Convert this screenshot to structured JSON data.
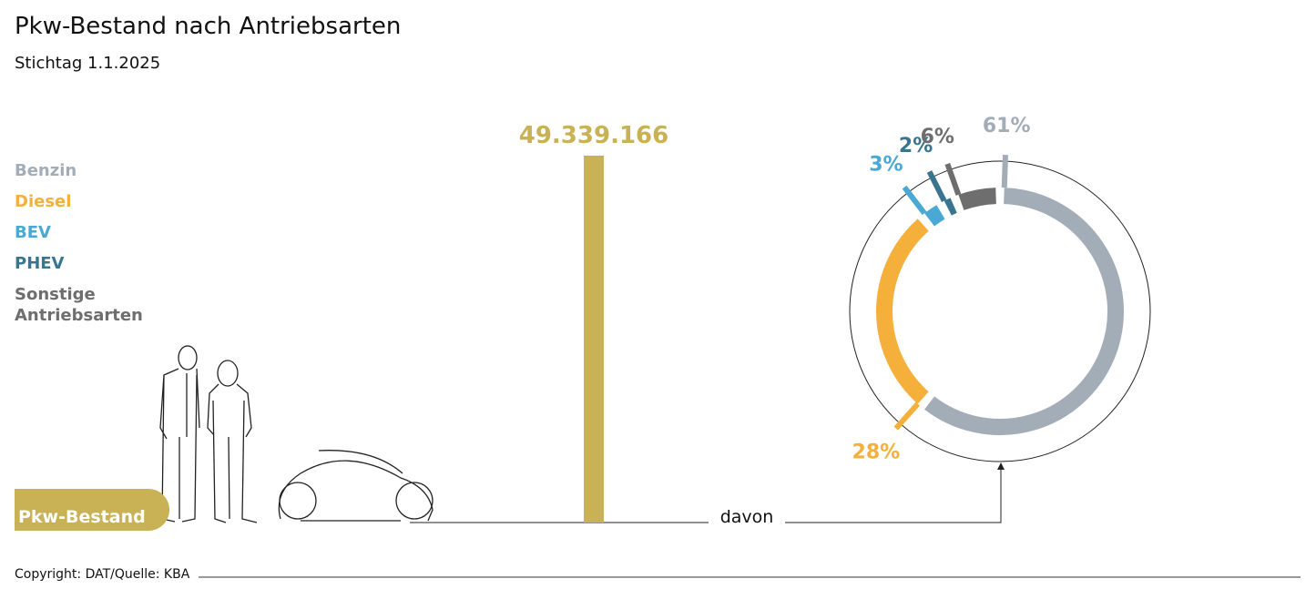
{
  "chart_data": [
    {
      "type": "bar",
      "title": "Pkw-Bestand nach Antriebsarten",
      "subtitle": "Stichtag 1.1.2025",
      "categories": [
        "Pkw-Bestand"
      ],
      "values": [
        49339166
      ],
      "value_labels": [
        "49.339.166"
      ],
      "color": "#c8b255",
      "annotation": "davon",
      "source": "Copyright: DAT/Quelle: KBA"
    },
    {
      "type": "pie",
      "categories": [
        "Benzin",
        "Diesel",
        "BEV",
        "PHEV",
        "Sonstige Antriebsarten"
      ],
      "values": [
        61,
        28,
        3,
        2,
        6
      ],
      "value_labels": [
        "61%",
        "28%",
        "3%",
        "2%",
        "6%"
      ],
      "colors": [
        "#a3adb8",
        "#f5b03c",
        "#4aa8d4",
        "#3a7590",
        "#6e6e6e"
      ]
    }
  ]
}
